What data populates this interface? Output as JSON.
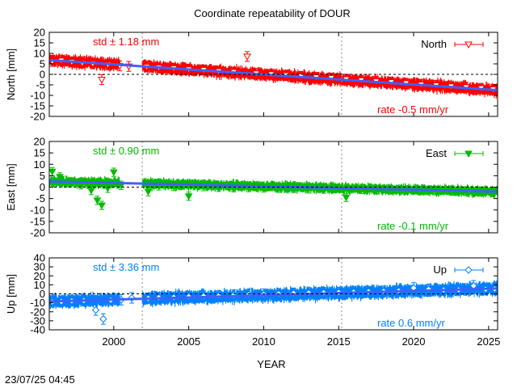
{
  "title": "Coordinate repeatability of DOUR",
  "xlabel": "YEAR",
  "timestamp": "23/07/25 04:45",
  "chart_data": {
    "type": "scatter",
    "title": "Coordinate repeatability of DOUR",
    "xlabel": "YEAR",
    "xlim": [
      1995.7,
      2025.6
    ],
    "xticks": [
      2000,
      2005,
      2010,
      2015,
      2020,
      2025
    ],
    "vlines": [
      2001.9,
      2015.2
    ],
    "panels": [
      {
        "name": "North",
        "ylabel": "North [mm]",
        "ylim": [
          -20,
          20
        ],
        "yticks": [
          -20,
          -15,
          -10,
          -5,
          0,
          5,
          10,
          15,
          20
        ],
        "color": "#ff0000",
        "std_label": "std ± 1.18 mm",
        "rate_label": "rate -0.5 mm/yr",
        "legend": "North",
        "marker": "triangle-down-open",
        "trend": [
          [
            1995.7,
            6.8
          ],
          [
            2025.6,
            -7.5
          ]
        ],
        "noise": 2.6,
        "data": [
          [
            1995.9,
            6.2
          ],
          [
            1996.5,
            6.6
          ],
          [
            1997.2,
            5.9
          ],
          [
            1997.9,
            5.4
          ],
          [
            1998.6,
            5.1
          ],
          [
            1999.2,
            -2.5
          ],
          [
            1999.6,
            4.6
          ],
          [
            2000.4,
            4.0
          ],
          [
            2001.0,
            3.8
          ],
          [
            2002.2,
            3.6
          ],
          [
            2003.0,
            3.2
          ],
          [
            2004.0,
            2.9
          ],
          [
            2005.0,
            2.4
          ],
          [
            2006.0,
            2.1
          ],
          [
            2007.0,
            1.5
          ],
          [
            2008.0,
            1.1
          ],
          [
            2008.9,
            8.5
          ],
          [
            2009.5,
            0.5
          ],
          [
            2010.5,
            0.1
          ],
          [
            2011.5,
            -0.4
          ],
          [
            2012.5,
            -0.9
          ],
          [
            2013.5,
            -1.4
          ],
          [
            2014.5,
            -1.7
          ],
          [
            2015.5,
            -2.3
          ],
          [
            2016.5,
            -2.8
          ],
          [
            2017.5,
            -3.3
          ],
          [
            2018.5,
            -3.7
          ],
          [
            2019.5,
            -4.2
          ],
          [
            2020.5,
            -4.8
          ],
          [
            2021.5,
            -5.2
          ],
          [
            2022.5,
            -5.7
          ],
          [
            2023.5,
            -6.1
          ],
          [
            2024.5,
            -6.6
          ],
          [
            2025.3,
            -7.1
          ]
        ]
      },
      {
        "name": "East",
        "ylabel": "East [mm]",
        "ylim": [
          -20,
          20
        ],
        "yticks": [
          -20,
          -15,
          -10,
          -5,
          0,
          5,
          10,
          15,
          20
        ],
        "color": "#00bb00",
        "std_label": "std ± 0.90 mm",
        "rate_label": "rate -0.1 mm/yr",
        "legend": "East",
        "marker": "triangle-down-filled",
        "trend": [
          [
            1995.7,
            2.5
          ],
          [
            2025.6,
            -2.0
          ]
        ],
        "noise": 2.0,
        "data": [
          [
            1995.9,
            6.8
          ],
          [
            1996.4,
            4.5
          ],
          [
            1997.0,
            2.0
          ],
          [
            1997.8,
            1.0
          ],
          [
            1998.5,
            -1.5
          ],
          [
            1998.9,
            -5.8
          ],
          [
            1999.2,
            -8.0
          ],
          [
            1999.6,
            -0.5
          ],
          [
            2000.0,
            6.5
          ],
          [
            2000.5,
            0.8
          ],
          [
            2002.3,
            -2.0
          ],
          [
            2003.0,
            0.5
          ],
          [
            2004.0,
            0.3
          ],
          [
            2005.0,
            -4.0
          ],
          [
            2006.0,
            0.2
          ],
          [
            2007.0,
            -0.1
          ],
          [
            2008.0,
            -0.3
          ],
          [
            2009.0,
            -0.2
          ],
          [
            2010.0,
            -0.4
          ],
          [
            2011.0,
            -0.5
          ],
          [
            2012.0,
            -0.6
          ],
          [
            2013.0,
            -0.8
          ],
          [
            2014.0,
            -0.9
          ],
          [
            2015.5,
            -4.5
          ],
          [
            2016.5,
            -1.0
          ],
          [
            2017.5,
            -1.2
          ],
          [
            2018.5,
            -1.3
          ],
          [
            2019.5,
            -1.4
          ],
          [
            2020.5,
            -1.5
          ],
          [
            2021.5,
            -1.6
          ],
          [
            2022.5,
            -1.7
          ],
          [
            2023.5,
            -1.8
          ],
          [
            2024.5,
            -1.9
          ],
          [
            2025.3,
            -2.0
          ]
        ]
      },
      {
        "name": "Up",
        "ylabel": "Up [mm]",
        "ylim": [
          -40,
          40
        ],
        "yticks": [
          -40,
          -30,
          -20,
          -10,
          0,
          10,
          20,
          30,
          40
        ],
        "color": "#0080ff",
        "std_label": "std ± 3.36 mm",
        "rate_label": "rate  0.6 mm/yr",
        "legend": "Up",
        "marker": "diamond-open",
        "trend": [
          [
            1995.7,
            -8.5
          ],
          [
            2025.6,
            6.0
          ]
        ],
        "noise": 6.5,
        "data": [
          [
            1995.9,
            -9.0
          ],
          [
            1996.5,
            -8.5
          ],
          [
            1997.2,
            -7.8
          ],
          [
            1998.0,
            -7.5
          ],
          [
            1998.8,
            -18.0
          ],
          [
            1999.3,
            -28.0
          ],
          [
            1999.8,
            -7.0
          ],
          [
            2000.5,
            -6.5
          ],
          [
            2001.2,
            -4.5
          ],
          [
            2002.3,
            -5.0
          ],
          [
            2003.0,
            -4.2
          ],
          [
            2004.0,
            -3.8
          ],
          [
            2005.0,
            -3.0
          ],
          [
            2006.0,
            -2.4
          ],
          [
            2007.0,
            -2.0
          ],
          [
            2008.0,
            -1.5
          ],
          [
            2009.0,
            -1.0
          ],
          [
            2010.0,
            -0.5
          ],
          [
            2011.0,
            0.0
          ],
          [
            2012.0,
            0.5
          ],
          [
            2013.0,
            1.0
          ],
          [
            2014.0,
            1.2
          ],
          [
            2015.0,
            1.5
          ],
          [
            2016.0,
            2.0
          ],
          [
            2017.0,
            2.3
          ],
          [
            2018.0,
            2.8
          ],
          [
            2019.0,
            3.2
          ],
          [
            2020.0,
            6.5
          ],
          [
            2021.0,
            5.0
          ],
          [
            2022.0,
            4.2
          ],
          [
            2023.0,
            4.5
          ],
          [
            2024.0,
            9.0
          ],
          [
            2024.8,
            5.2
          ],
          [
            2025.4,
            5.5
          ]
        ]
      }
    ]
  }
}
